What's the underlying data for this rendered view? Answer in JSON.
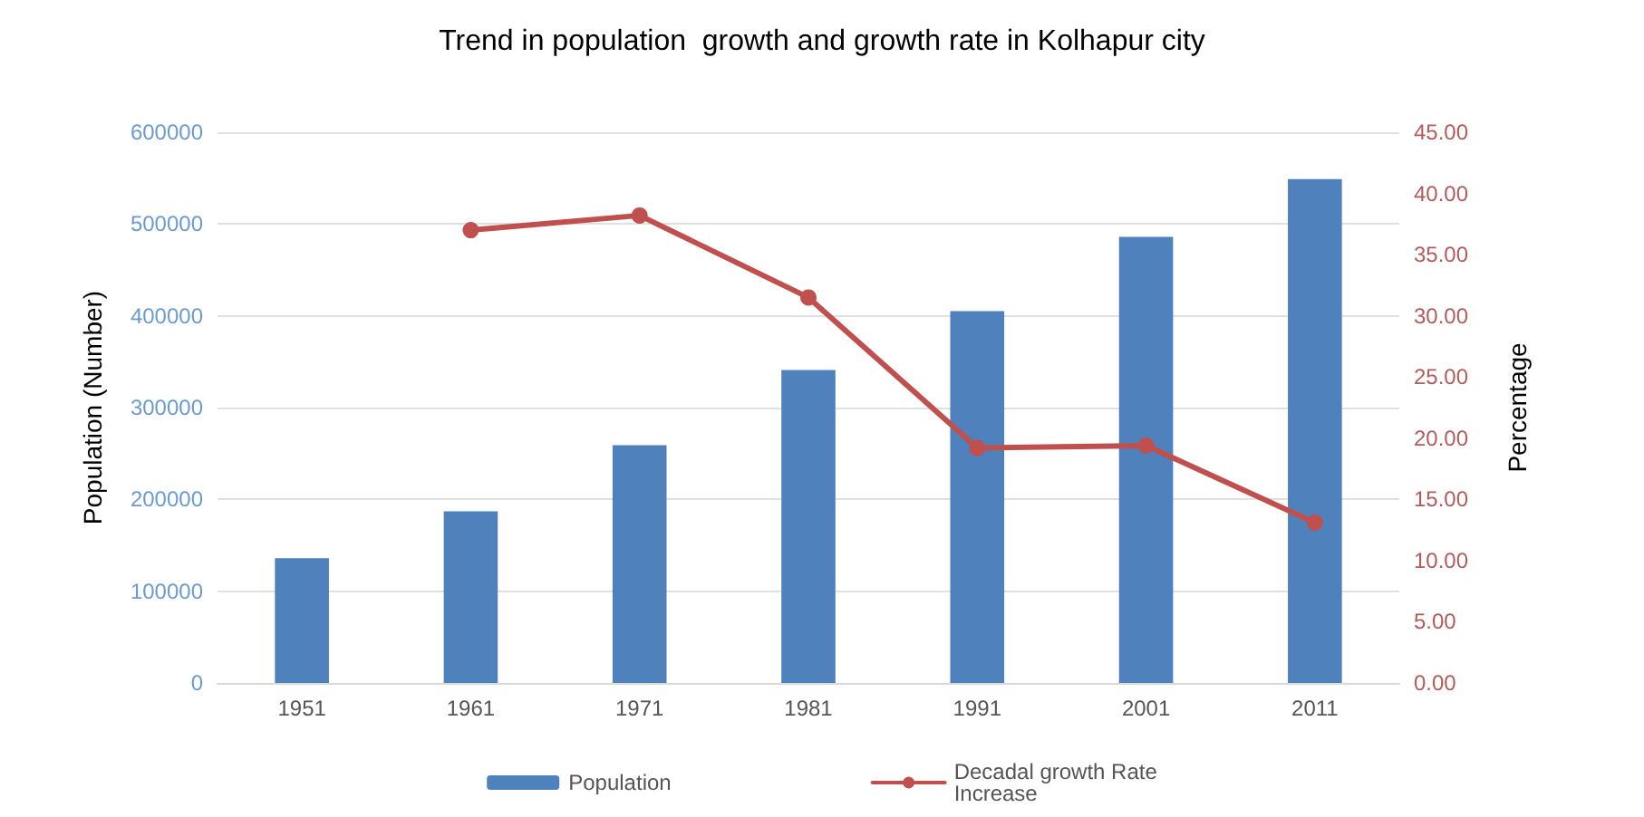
{
  "chart_data": {
    "type": "bar",
    "title": "Trend in population  growth and growth rate in Kolhapur city",
    "categories": [
      "1951",
      "1961",
      "1971",
      "1981",
      "1991",
      "2001",
      "2011"
    ],
    "ylabel": "Population (Number)",
    "y2label": "Percentage",
    "series": [
      {
        "name": "Population",
        "color": "#4f81bd",
        "values": [
          136000,
          187000,
          259000,
          341000,
          405000,
          486000,
          549000
        ]
      },
      {
        "name": "Decadal growth Rate\nIncrease",
        "type": "line",
        "axis": "y2",
        "color": "#c0504d",
        "marker": "circle",
        "values": [
          null,
          37.0,
          38.2,
          31.5,
          19.2,
          19.4,
          13.1
        ]
      }
    ],
    "ylim": [
      0,
      600000
    ],
    "yticks": [
      0,
      100000,
      200000,
      300000,
      400000,
      500000,
      600000
    ],
    "y2lim": [
      0,
      45
    ],
    "y2ticks": [
      {
        "value": 0,
        "label": "0.00"
      },
      {
        "value": 5,
        "label": "5.00"
      },
      {
        "value": 10,
        "label": "10.00"
      },
      {
        "value": 15,
        "label": "15.00"
      },
      {
        "value": 20,
        "label": "20.00"
      },
      {
        "value": 25,
        "label": "25.00"
      },
      {
        "value": 30,
        "label": "30.00"
      },
      {
        "value": 35,
        "label": "35.00"
      },
      {
        "value": 40,
        "label": "40.00"
      },
      {
        "value": 45,
        "label": "45.00"
      }
    ],
    "grid": "y",
    "legend": "bottom"
  }
}
